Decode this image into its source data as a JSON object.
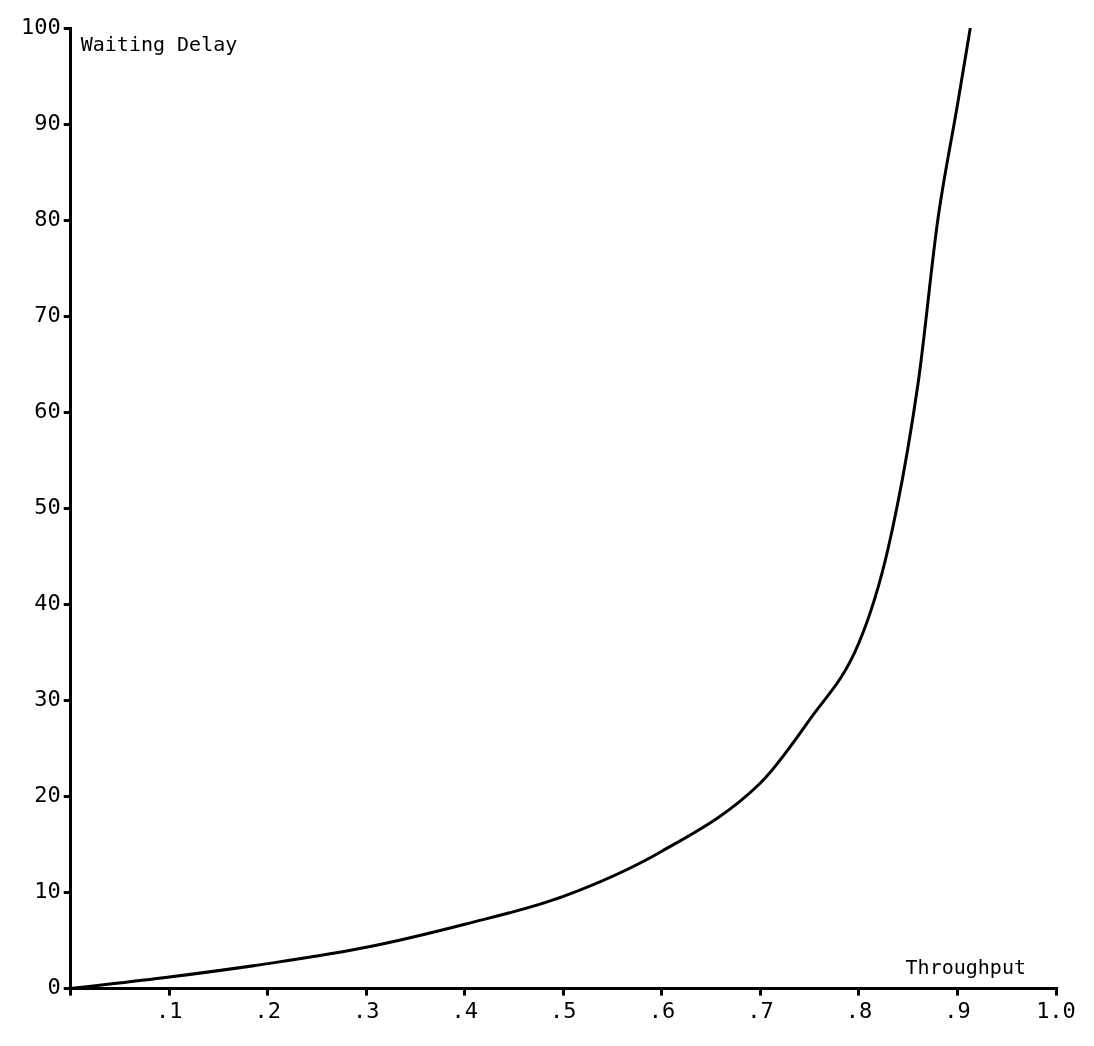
{
  "chart_data": {
    "type": "line",
    "xlabel": "Throughput",
    "ylabel": "Waiting Delay",
    "x": [
      0,
      0.1,
      0.2,
      0.3,
      0.4,
      0.5,
      0.6,
      0.7,
      0.75,
      0.8,
      0.83,
      0.86,
      0.88,
      0.9,
      0.913
    ],
    "series": [
      {
        "color": "#000000",
        "values": [
          0,
          1.2,
          2.6,
          4.3,
          6.7,
          9.6,
          14.3,
          21.4,
          28,
          36,
          46,
          63,
          80,
          92,
          100
        ]
      }
    ],
    "xlim": [
      0,
      1.0
    ],
    "xticks": [
      {
        "value": 0,
        "label": null
      },
      {
        "value": 0.1,
        "label": ".1"
      },
      {
        "value": 0.2,
        "label": ".2"
      },
      {
        "value": 0.3,
        "label": ".3"
      },
      {
        "value": 0.4,
        "label": ".4"
      },
      {
        "value": 0.5,
        "label": ".5"
      },
      {
        "value": 0.6,
        "label": ".6"
      },
      {
        "value": 0.7,
        "label": ".7"
      },
      {
        "value": 0.8,
        "label": ".8"
      },
      {
        "value": 0.9,
        "label": ".9"
      },
      {
        "value": 1.0,
        "label": "1.0"
      }
    ],
    "ylim": [
      0,
      100
    ],
    "yticks": [
      0,
      10,
      20,
      30,
      40,
      50,
      60,
      70,
      80,
      90,
      100
    ],
    "legend": false,
    "marker": "none",
    "line_style": "solid"
  }
}
